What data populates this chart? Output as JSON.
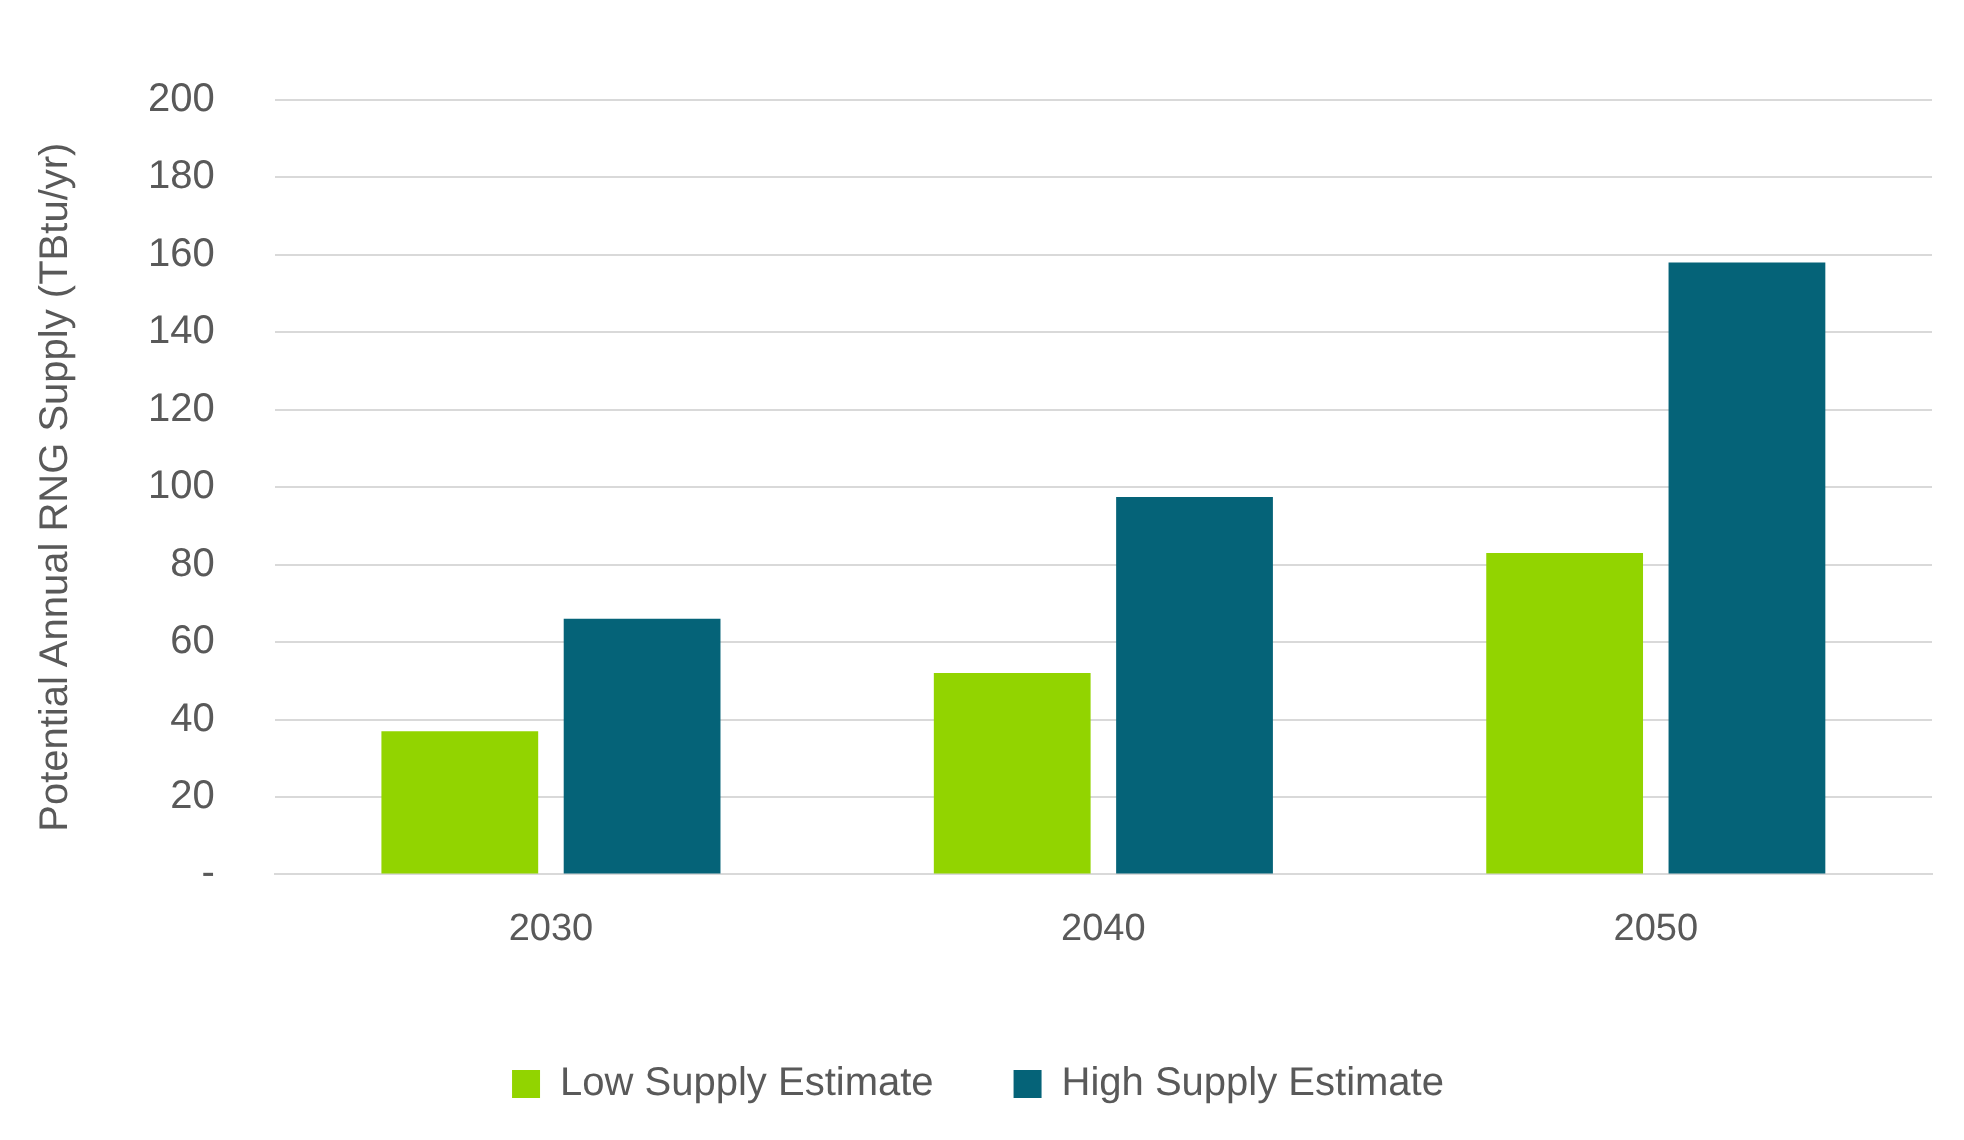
{
  "chart_data": {
    "type": "bar",
    "ylabel": "Potential Annual RNG Supply (TBtu/yr)",
    "categories": [
      "2030",
      "2040",
      "2050"
    ],
    "series": [
      {
        "name": "Low Supply Estimate",
        "color": "#92d400",
        "values": [
          37,
          52,
          83
        ]
      },
      {
        "name": "High Supply Estimate",
        "color": "#056378",
        "values": [
          66,
          97.5,
          158
        ]
      }
    ],
    "ylim": [
      0,
      200
    ],
    "yticks": [
      {
        "value": 0,
        "label": "-"
      },
      20,
      40,
      60,
      80,
      100,
      120,
      140,
      160,
      180,
      200
    ],
    "grid": "y",
    "legend": "bottom"
  }
}
